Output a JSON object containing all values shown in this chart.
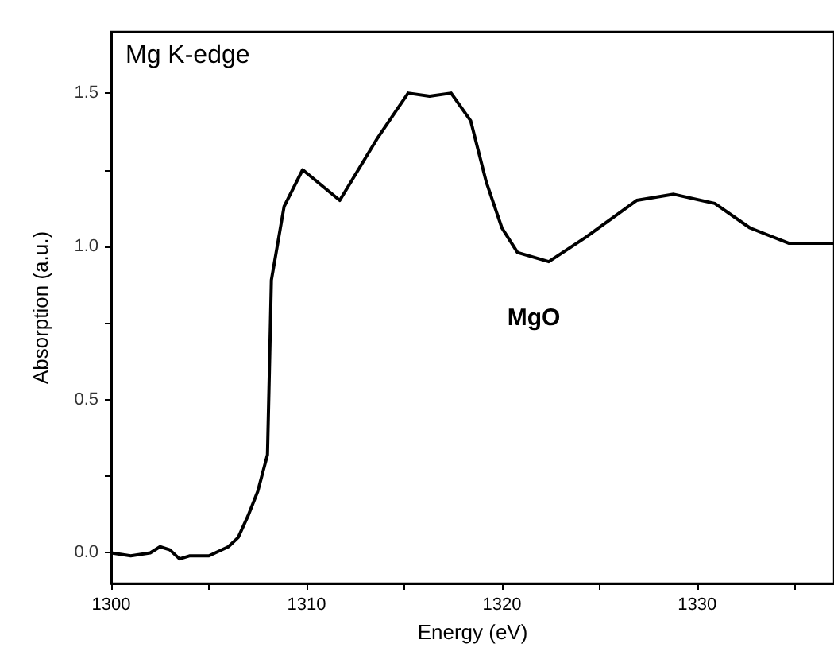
{
  "chart_data": {
    "type": "line",
    "title": "Mg K-edge",
    "xlabel": "Energy (eV)",
    "ylabel": "Absorption (a.u.)",
    "xlim": [
      1300,
      1337
    ],
    "ylim": [
      -0.1,
      1.7
    ],
    "xticks": [
      1300,
      {
        "value": 1305,
        "label": null
      },
      1310,
      {
        "value": 1315,
        "label": null
      },
      1320,
      {
        "value": 1325,
        "label": null
      },
      1330,
      {
        "value": 1335,
        "label": null
      }
    ],
    "yticks": [
      {
        "value": 0,
        "label": "0.0"
      },
      {
        "value": 0.25,
        "label": null
      },
      {
        "value": 0.5,
        "label": "0.5"
      },
      {
        "value": 0.75,
        "label": null
      },
      {
        "value": 1,
        "label": "1.0"
      },
      {
        "value": 1.25,
        "label": null
      },
      {
        "value": 1.5,
        "label": "1.5"
      }
    ],
    "marker": "none",
    "line_style": "solid",
    "annotations": [
      "MgO"
    ],
    "series": [
      {
        "color": "#000000",
        "x": [
          1300,
          1301,
          1302,
          1302.5,
          1303,
          1303.5,
          1304,
          1305,
          1306,
          1306.5,
          1307,
          1307.5,
          1308,
          1308.1,
          1308.2,
          1308.85,
          1309.8,
          1311.7,
          1313.6,
          1315.2,
          1316.3,
          1317.4,
          1318.4,
          1319.2,
          1320,
          1320.8,
          1322.4,
          1324.3,
          1326.9,
          1328.8,
          1330.9,
          1332.7,
          1334.7,
          1337
        ],
        "values": [
          0.0,
          -0.01,
          0.0,
          0.02,
          0.01,
          -0.02,
          -0.01,
          -0.01,
          0.02,
          0.05,
          0.12,
          0.2,
          0.32,
          0.6,
          0.89,
          1.13,
          1.25,
          1.15,
          1.35,
          1.5,
          1.49,
          1.5,
          1.41,
          1.21,
          1.06,
          0.98,
          0.95,
          1.03,
          1.15,
          1.17,
          1.14,
          1.06,
          1.01,
          1.01
        ]
      }
    ]
  }
}
